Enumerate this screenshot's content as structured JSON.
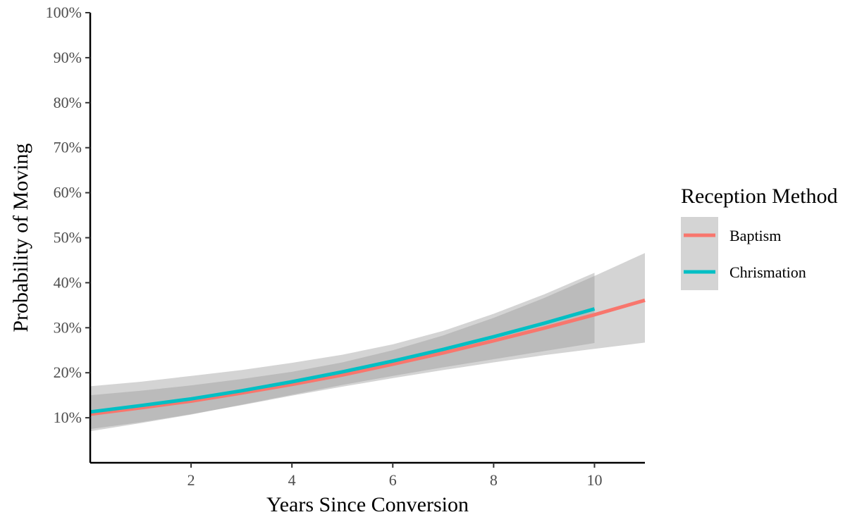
{
  "chart_data": {
    "type": "line",
    "title": "",
    "xlabel": "Years Since Conversion",
    "ylabel": "Probability of Moving",
    "xlim": [
      0,
      11
    ],
    "ylim": [
      0,
      100
    ],
    "xticks": [
      2,
      4,
      6,
      8,
      10
    ],
    "xtick_labels": [
      "2",
      "4",
      "6",
      "8",
      "10"
    ],
    "yticks": [
      10,
      20,
      30,
      40,
      50,
      60,
      70,
      80,
      90,
      100
    ],
    "ytick_labels": [
      "10%",
      "20%",
      "30%",
      "40%",
      "50%",
      "60%",
      "70%",
      "80%",
      "90%",
      "100%"
    ],
    "grid": false,
    "legend": {
      "title": "Reception Method",
      "position": "right"
    },
    "band_color": "#999999",
    "series": [
      {
        "name": "Baptism",
        "color": "#F8766D",
        "x": [
          0,
          1,
          2,
          3,
          4,
          5,
          6,
          7,
          8,
          9,
          10,
          11
        ],
        "y": [
          10.8,
          12.2,
          13.7,
          15.5,
          17.4,
          19.5,
          21.9,
          24.4,
          27.1,
          29.9,
          32.9,
          36.1
        ],
        "lower": [
          7.5,
          9.0,
          10.8,
          12.8,
          14.9,
          16.9,
          18.8,
          20.6,
          22.3,
          23.9,
          25.3,
          26.7
        ],
        "upper": [
          15.0,
          16.0,
          17.2,
          18.6,
          20.2,
          22.3,
          25.0,
          28.3,
          32.2,
          36.6,
          41.5,
          46.6
        ]
      },
      {
        "name": "Chrismation",
        "color": "#00BFC4",
        "x": [
          0,
          1,
          2,
          3,
          4,
          5,
          6,
          7,
          8,
          9,
          10
        ],
        "y": [
          11.3,
          12.7,
          14.2,
          16.0,
          18.0,
          20.2,
          22.6,
          25.2,
          28.0,
          31.0,
          34.2
        ],
        "lower": [
          7.0,
          8.8,
          10.7,
          12.9,
          15.1,
          17.3,
          19.3,
          21.2,
          23.0,
          24.8,
          26.6
        ],
        "upper": [
          17.0,
          18.0,
          19.3,
          20.6,
          22.2,
          24.0,
          26.3,
          29.3,
          33.1,
          37.4,
          42.2
        ]
      }
    ]
  }
}
